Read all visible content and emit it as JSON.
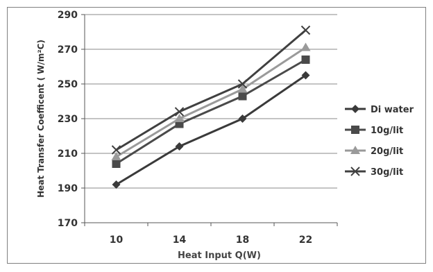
{
  "chart_data": {
    "type": "line",
    "title": "",
    "xlabel": "Heat Input Q(W)",
    "ylabel": "Heat Transfer Coefficent ( W/m²C)",
    "x": [
      10,
      14,
      18,
      22
    ],
    "ylim": [
      170,
      290
    ],
    "yticks": [
      170,
      190,
      210,
      230,
      250,
      270,
      290
    ],
    "grid": true,
    "legend_position": "right",
    "series": [
      {
        "name": "Di water",
        "values": [
          192,
          214,
          230,
          255
        ],
        "marker": "diamond",
        "color": "#3a3a3a"
      },
      {
        "name": "10g/lit",
        "values": [
          204,
          227,
          243,
          264
        ],
        "marker": "square",
        "color": "#4a4a4a"
      },
      {
        "name": "20g/lit",
        "values": [
          208,
          230,
          247,
          271
        ],
        "marker": "triangle",
        "color": "#9a9a9a"
      },
      {
        "name": "30g/lit",
        "values": [
          212,
          234,
          250,
          281
        ],
        "marker": "x",
        "color": "#404040"
      }
    ]
  }
}
